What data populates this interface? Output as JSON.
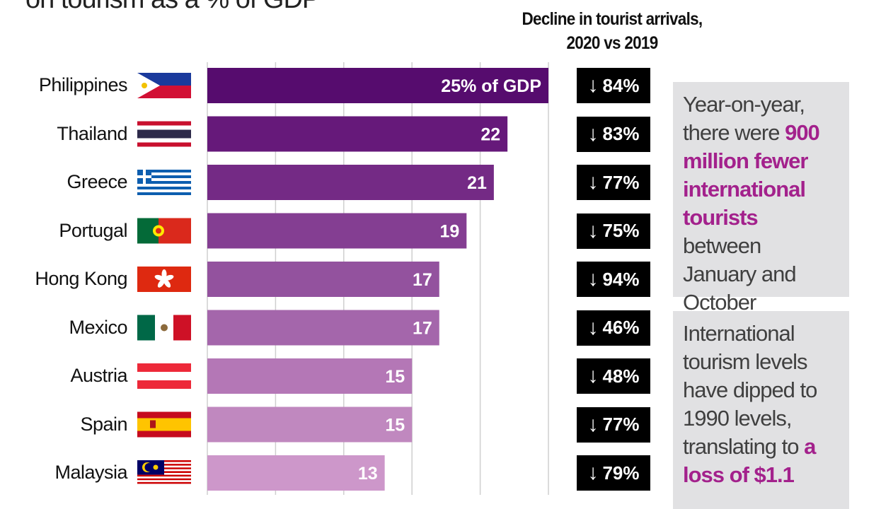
{
  "title": "on tourism as a % of GDP",
  "decline_header": {
    "line1": "Decline in tourist arrivals,",
    "line2": "2020 vs 2019"
  },
  "chart_data": {
    "type": "bar",
    "orientation": "horizontal",
    "categories": [
      "Philippines",
      "Thailand",
      "Greece",
      "Portugal",
      "Hong Kong",
      "Mexico",
      "Austria",
      "Spain",
      "Malaysia"
    ],
    "values": [
      25,
      22,
      21,
      19,
      17,
      17,
      15,
      15,
      13
    ],
    "data_labels": [
      "25% of GDP",
      "22",
      "21",
      "19",
      "17",
      "17",
      "15",
      "15",
      "13"
    ],
    "xlim": [
      0,
      25
    ],
    "grid": true,
    "bar_colors": [
      "#560c6e",
      "#66197a",
      "#742a85",
      "#843e92",
      "#93529e",
      "#a466ab",
      "#b477b6",
      "#c088bf",
      "#cd97ca"
    ],
    "decline_in_arrivals_pct": [
      "84%",
      "83%",
      "77%",
      "75%",
      "94%",
      "46%",
      "48%",
      "77%",
      "79%"
    ]
  },
  "flags": [
    "philippines-flag",
    "thailand-flag",
    "greece-flag",
    "portugal-flag",
    "hong-kong-flag",
    "mexico-flag",
    "austria-flag",
    "spain-flag",
    "malaysia-flag"
  ],
  "note1": {
    "pre": "Year-on-year, there were ",
    "highlight": "900 million fewer international tourists",
    "post": " between January and October"
  },
  "note2": {
    "pre": "International tourism levels have dipped to 1990 levels, translating to ",
    "highlight": "a loss of $1.1"
  },
  "colors": {
    "highlight": "#a3218c",
    "note_bg": "#e1e1e3",
    "badge_bg": "#000000"
  }
}
